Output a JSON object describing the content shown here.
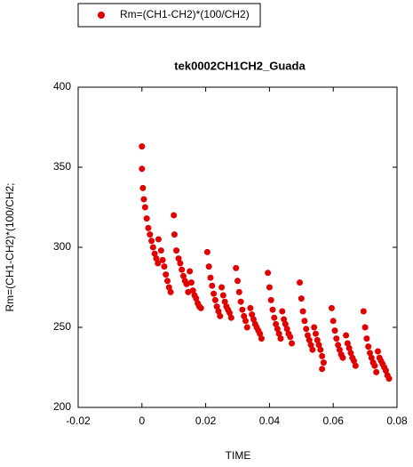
{
  "chart_data": {
    "type": "scatter",
    "title": "tek0002CH1CH2_Guada",
    "x_label": "TIME",
    "y_label": "Rm=(CH1-CH2)*(100/CH2;",
    "legend": "top-left",
    "xlim": [
      -0.02,
      0.08
    ],
    "xticks": [
      -0.02,
      0,
      0.02,
      0.04,
      0.06,
      0.08
    ],
    "ylim": [
      200,
      400
    ],
    "yticks": [
      200,
      250,
      300,
      350,
      400
    ],
    "x": [
      0,
      0,
      0.0003,
      0.0006,
      0.001,
      0.0015,
      0.002,
      0.0025,
      0.003,
      0.0035,
      0.004,
      0.0045,
      0.005,
      0.0052,
      0.006,
      0.0065,
      0.007,
      0.0075,
      0.008,
      0.0085,
      0.009,
      0.01,
      0.0102,
      0.0108,
      0.0115,
      0.012,
      0.0125,
      0.013,
      0.0135,
      0.014,
      0.0145,
      0.015,
      0.0155,
      0.016,
      0.0165,
      0.017,
      0.0175,
      0.018,
      0.0185,
      0.0205,
      0.021,
      0.0215,
      0.022,
      0.0225,
      0.023,
      0.0235,
      0.024,
      0.0245,
      0.025,
      0.0255,
      0.026,
      0.0265,
      0.027,
      0.0275,
      0.028,
      0.0295,
      0.03,
      0.0305,
      0.031,
      0.0315,
      0.032,
      0.0325,
      0.033,
      0.034,
      0.0345,
      0.035,
      0.0355,
      0.036,
      0.0365,
      0.037,
      0.0375,
      0.0395,
      0.04,
      0.0405,
      0.041,
      0.0415,
      0.042,
      0.0425,
      0.043,
      0.0435,
      0.044,
      0.0445,
      0.045,
      0.0455,
      0.046,
      0.0465,
      0.047,
      0.0495,
      0.05,
      0.0505,
      0.051,
      0.0515,
      0.052,
      0.0525,
      0.053,
      0.0535,
      0.054,
      0.0545,
      0.055,
      0.0555,
      0.056,
      0.0565,
      0.057,
      0.0565,
      0.0595,
      0.06,
      0.0605,
      0.061,
      0.0615,
      0.062,
      0.0625,
      0.063,
      0.064,
      0.0645,
      0.065,
      0.0655,
      0.066,
      0.0665,
      0.067,
      0.0695,
      0.07,
      0.0705,
      0.071,
      0.0715,
      0.072,
      0.0725,
      0.073,
      0.0735,
      0.074,
      0.0745,
      0.075,
      0.0755,
      0.076,
      0.0765,
      0.077,
      0.0775
    ],
    "series": [
      {
        "name": "Rm=(CH1-CH2)*(100/CH2)",
        "color": "#e00000",
        "values": [
          363,
          349,
          337,
          330,
          325,
          318,
          312,
          308,
          304,
          300,
          296,
          293,
          290,
          305,
          298,
          292,
          288,
          283,
          279,
          275,
          272,
          320,
          308,
          298,
          293,
          290,
          286,
          282,
          279,
          277,
          272,
          285,
          278,
          273,
          270,
          268,
          265,
          263,
          262,
          297,
          288,
          281,
          276,
          271,
          267,
          263,
          260,
          257,
          275,
          270,
          266,
          263,
          261,
          259,
          256,
          287,
          279,
          272,
          266,
          261,
          257,
          254,
          250,
          262,
          258,
          255,
          252,
          250,
          248,
          246,
          243,
          284,
          275,
          267,
          261,
          256,
          252,
          249,
          246,
          243,
          260,
          255,
          252,
          249,
          246,
          244,
          240,
          278,
          268,
          260,
          254,
          249,
          245,
          242,
          239,
          236,
          250,
          246,
          242,
          239,
          236,
          232,
          228,
          224,
          262,
          254,
          248,
          243,
          239,
          236,
          233,
          231,
          245,
          240,
          237,
          234,
          231,
          229,
          226,
          260,
          250,
          243,
          238,
          234,
          231,
          228,
          226,
          222,
          235,
          231,
          229,
          227,
          225,
          223,
          220,
          218
        ]
      }
    ]
  }
}
